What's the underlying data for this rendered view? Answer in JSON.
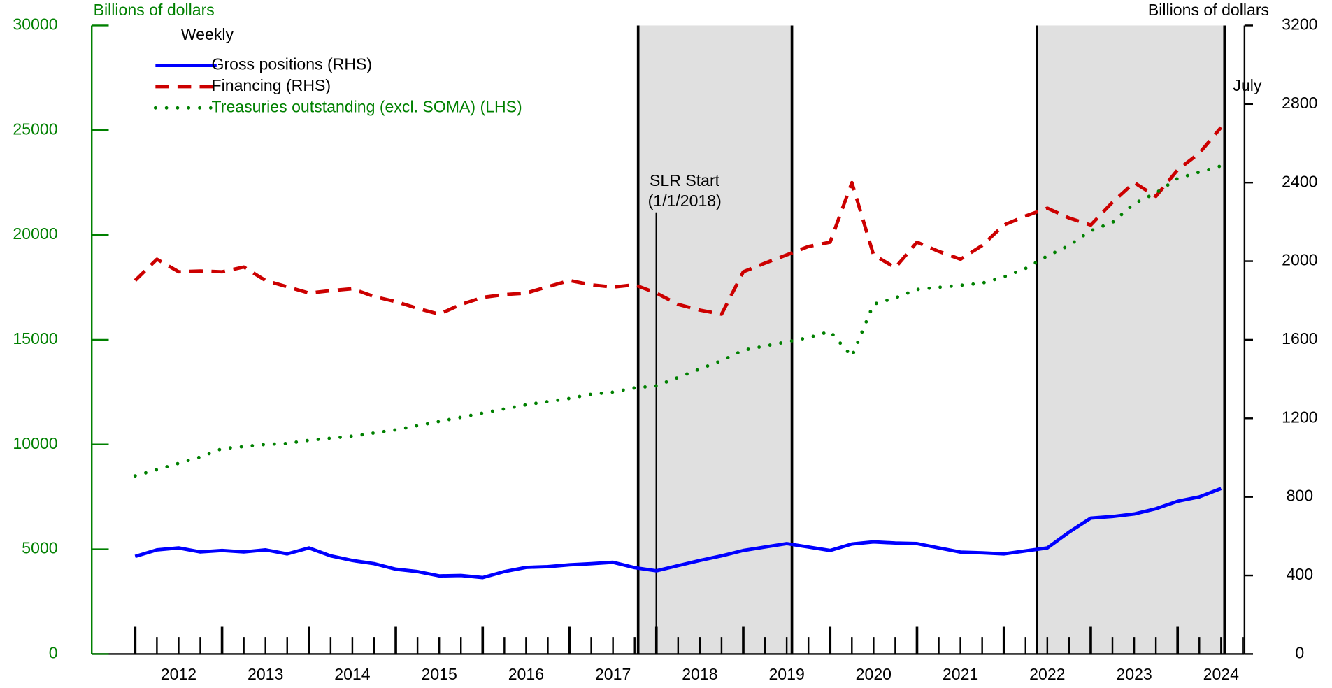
{
  "chart_data": {
    "type": "line",
    "y_label": "Billions of dollars",
    "y2_label": "Billions of dollars",
    "legend_title": "Weekly",
    "xlim": [
      2011.5,
      2024.77
    ],
    "xticks": [
      {
        "value": 2012,
        "label": "2012"
      },
      {
        "value": 2013,
        "label": "2013"
      },
      {
        "value": 2014,
        "label": "2014"
      },
      {
        "value": 2015,
        "label": "2015"
      },
      {
        "value": 2016,
        "label": "2016"
      },
      {
        "value": 2017,
        "label": "2017"
      },
      {
        "value": 2018,
        "label": "2018"
      },
      {
        "value": 2019,
        "label": "2019"
      },
      {
        "value": 2020,
        "label": "2020"
      },
      {
        "value": 2021,
        "label": "2021"
      },
      {
        "value": 2022,
        "label": "2022"
      },
      {
        "value": 2023,
        "label": "2023"
      },
      {
        "value": 2024,
        "label": "2024"
      }
    ],
    "ylim": [
      0,
      30000
    ],
    "yticks": [
      0,
      5000,
      10000,
      15000,
      20000,
      25000,
      30000
    ],
    "y2lim": [
      0,
      3200
    ],
    "y2ticks": [
      0,
      400,
      800,
      1200,
      1600,
      2000,
      2400,
      2800,
      3200
    ],
    "shaded_ranges": [
      [
        2017.79,
        2019.56
      ],
      [
        2022.38,
        2024.54
      ]
    ],
    "annotations": [
      {
        "label": "SLR Start",
        "sublabel": "(1/1/2018)",
        "x": 2018.0
      },
      {
        "label": "July",
        "x": 2024.54
      }
    ],
    "x": [
      2012,
      2012.25,
      2012.5,
      2012.75,
      2013,
      2013.25,
      2013.5,
      2013.75,
      2014,
      2014.25,
      2014.5,
      2014.75,
      2015,
      2015.25,
      2015.5,
      2015.75,
      2016,
      2016.25,
      2016.5,
      2016.75,
      2017,
      2017.25,
      2017.5,
      2017.75,
      2018,
      2018.25,
      2018.5,
      2018.75,
      2019,
      2019.25,
      2019.5,
      2019.75,
      2020,
      2020.25,
      2020.5,
      2020.75,
      2021,
      2021.25,
      2021.5,
      2021.75,
      2022,
      2022.25,
      2022.5,
      2022.75,
      2023,
      2023.25,
      2023.5,
      2023.75,
      2024,
      2024.25,
      2024.5
    ],
    "series": [
      {
        "name": "Gross positions (RHS)",
        "color": "#0000ff",
        "style": "solid",
        "axis": "y2",
        "values": [
          497,
          530,
          540,
          520,
          527,
          520,
          530,
          510,
          540,
          500,
          476,
          460,
          432,
          420,
          398,
          400,
          389,
          420,
          441,
          445,
          454,
          460,
          467,
          440,
          424,
          450,
          476,
          500,
          527,
          545,
          562,
          545,
          527,
          560,
          571,
          565,
          562,
          540,
          519,
          515,
          510,
          525,
          540,
          620,
          692,
          700,
          713,
          740,
          778,
          800,
          843
        ]
      },
      {
        "name": "Financing (RHS)",
        "color": "#cc0000",
        "style": "dashed",
        "axis": "y2",
        "values": [
          1902,
          2010,
          1946,
          1950,
          1946,
          1970,
          1902,
          1870,
          1838,
          1850,
          1860,
          1820,
          1794,
          1760,
          1730,
          1780,
          1816,
          1830,
          1838,
          1870,
          1902,
          1880,
          1868,
          1880,
          1838,
          1780,
          1751,
          1730,
          1946,
          1990,
          2032,
          2075,
          2097,
          2400,
          2032,
          1967,
          2097,
          2050,
          2010,
          2080,
          2184,
          2230,
          2270,
          2220,
          2184,
          2300,
          2400,
          2330,
          2465,
          2550,
          2681
        ]
      },
      {
        "name": "Treasuries outstanding (excl. SOMA) (LHS)",
        "color": "#008000",
        "style": "dotted",
        "axis": "y",
        "values": [
          8500,
          8800,
          9100,
          9400,
          9800,
          9900,
          10000,
          10050,
          10200,
          10300,
          10400,
          10550,
          10700,
          10900,
          11100,
          11300,
          11500,
          11700,
          11900,
          12050,
          12200,
          12400,
          12500,
          12700,
          12800,
          13200,
          13600,
          14000,
          14500,
          14700,
          14900,
          15100,
          15400,
          14200,
          16700,
          17000,
          17400,
          17500,
          17600,
          17700,
          18000,
          18400,
          19000,
          19500,
          20200,
          20600,
          21500,
          22000,
          22700,
          23000,
          23300
        ]
      }
    ]
  }
}
